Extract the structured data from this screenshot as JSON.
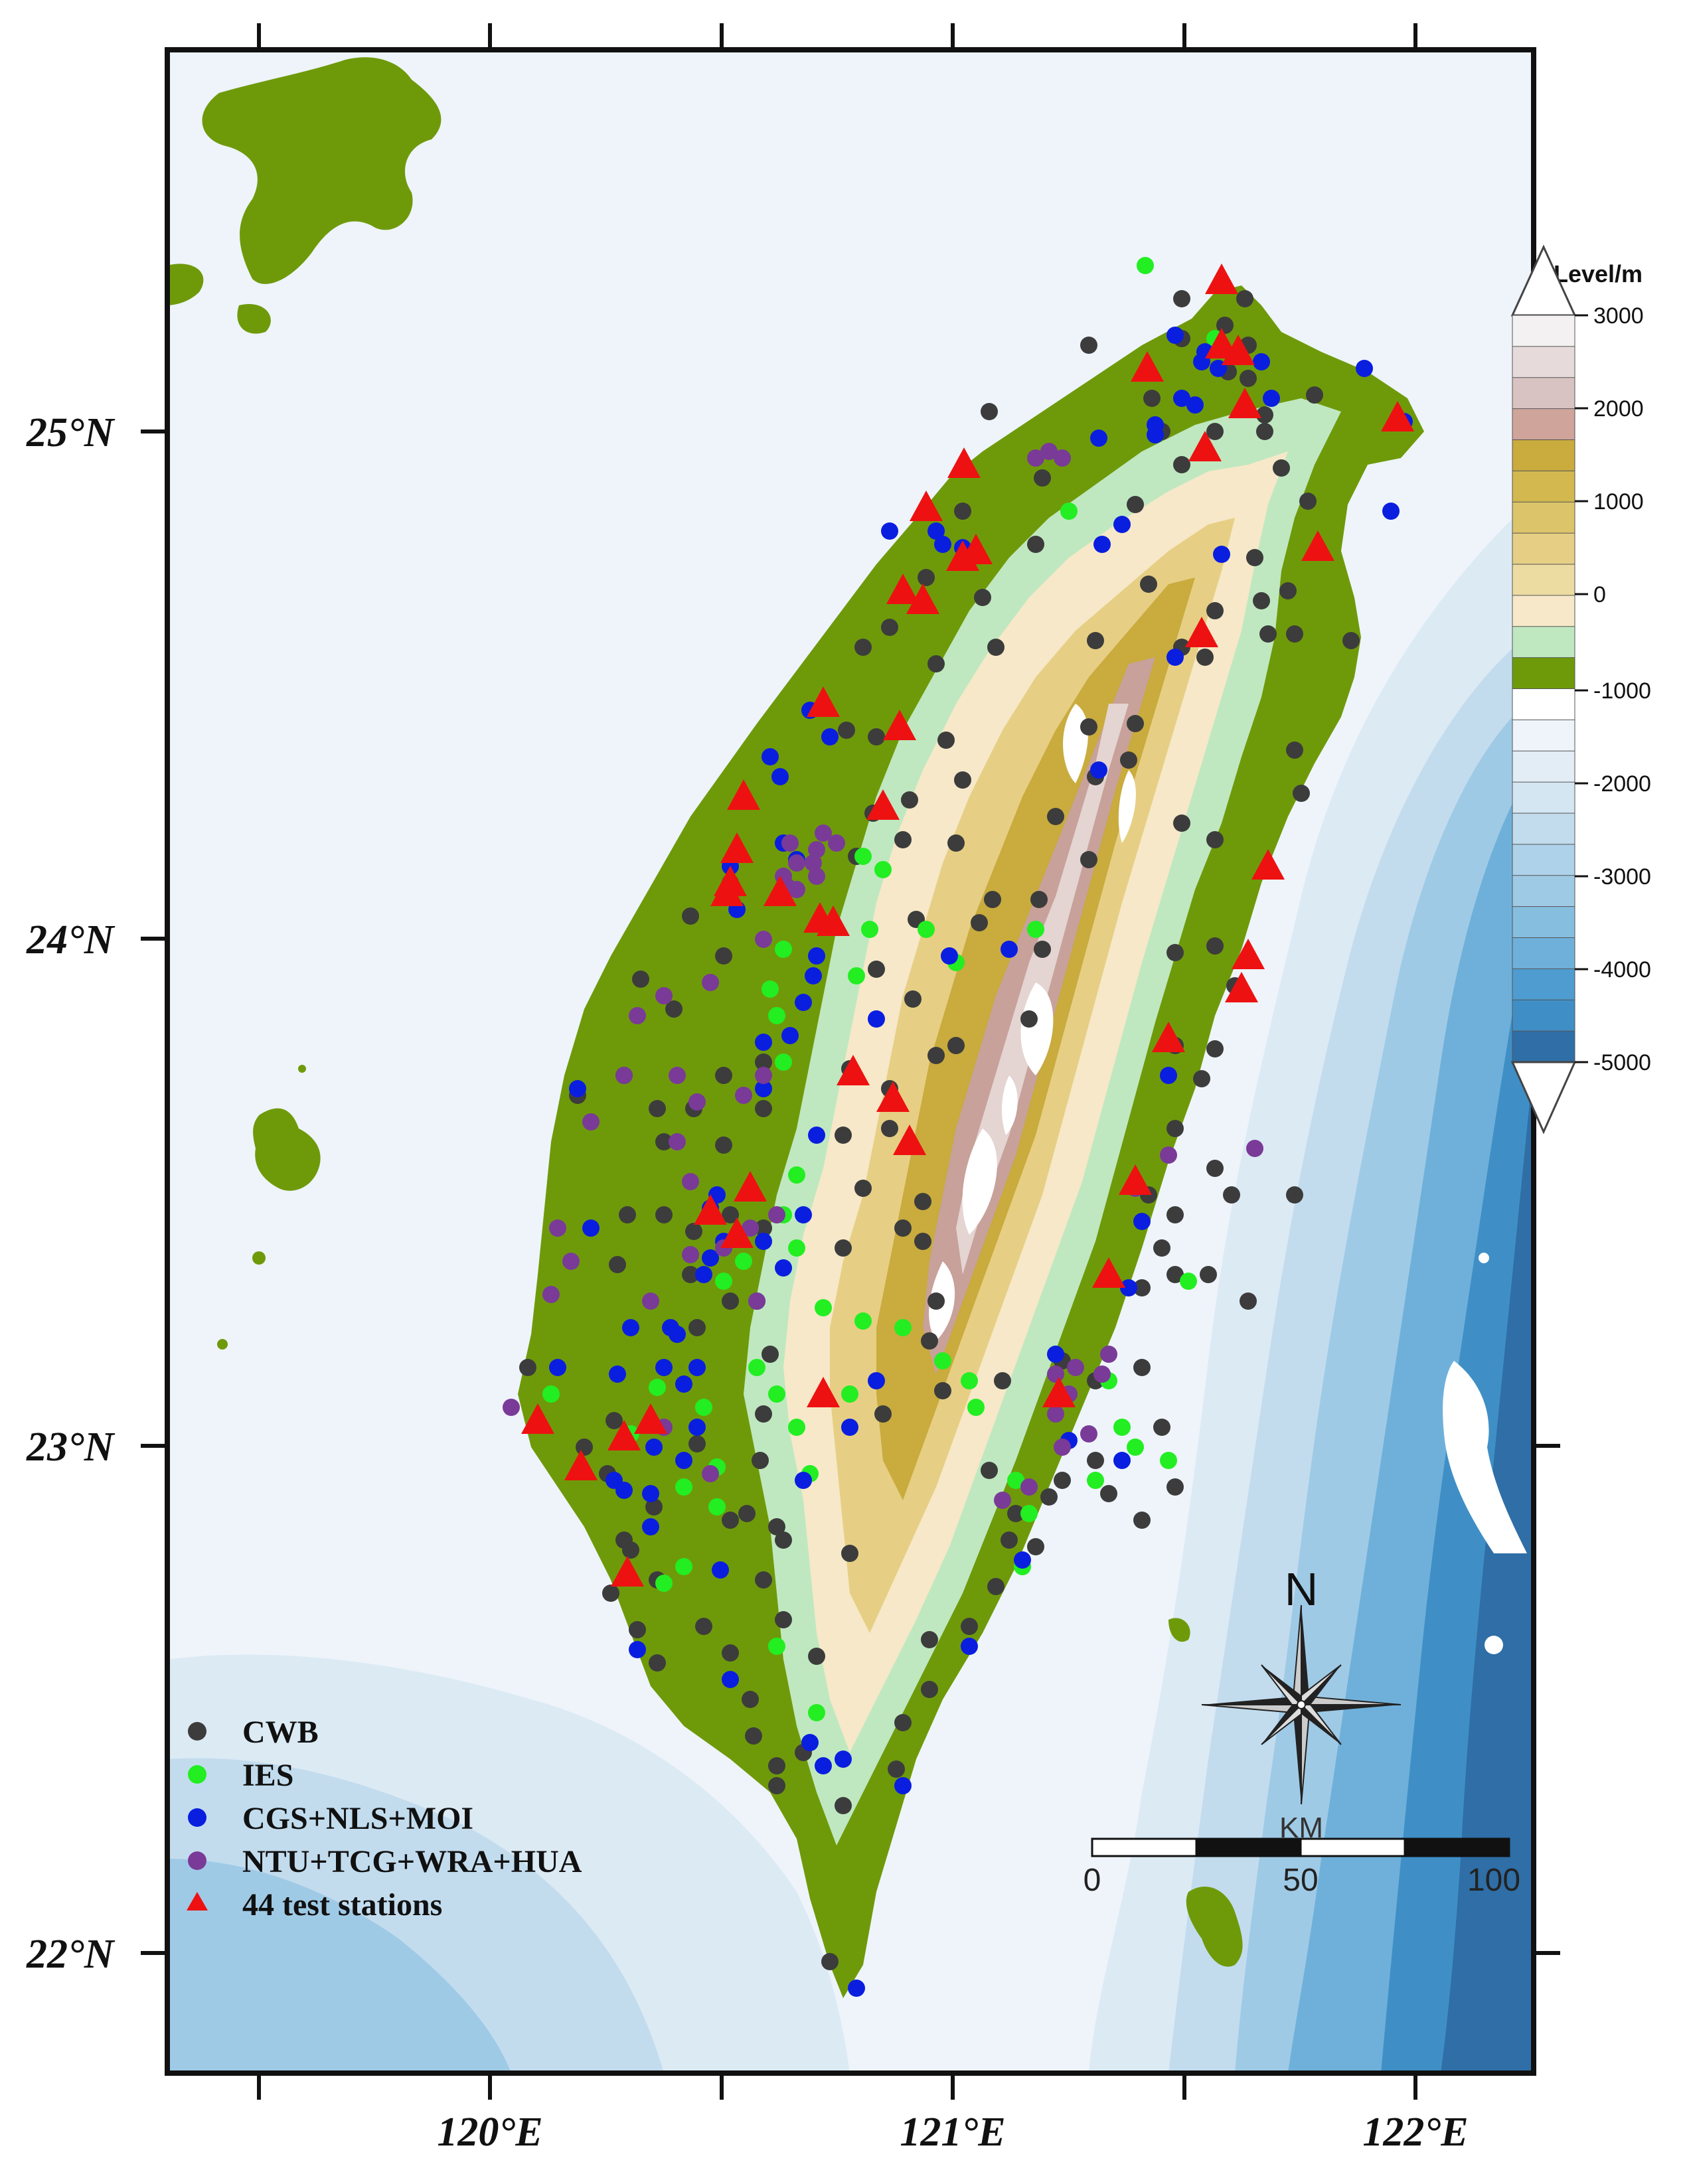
{
  "colors": {
    "ocean_shallow": "#eef4fa",
    "ocean_1": "#dceaf4",
    "ocean_2": "#c2dcee",
    "ocean_3": "#9fcae6",
    "ocean_4": "#6fb0da",
    "ocean_5": "#3f8fc6",
    "ocean_deep": "#2f6ea6",
    "lowland": "#6e9a0a",
    "hill": "#bfe8c0",
    "mid1": "#f6e8c8",
    "mid2": "#e6cf84",
    "mid3": "#c9ab3e",
    "high1": "#c7a19a",
    "high2": "#e4d4d2",
    "peak": "#ffffff",
    "cwb": "#3c3c3c",
    "ies": "#22ee22",
    "cgs": "#0a1ee0",
    "ntu": "#7a3a98",
    "test": "#ee1111"
  },
  "axes": {
    "lat_labels": [
      "25°N",
      "24°N",
      "23°N",
      "22°N"
    ],
    "lon_labels": [
      "120°E",
      "121°E",
      "122°E"
    ]
  },
  "colorbar": {
    "title": "Level/m",
    "ticks": [
      "3000",
      "2000",
      "1000",
      "0",
      "-1000",
      "-2000",
      "-3000",
      "-4000",
      "-5000"
    ]
  },
  "legend": [
    {
      "label": "CWB",
      "marker": "circle",
      "color_key": "cwb"
    },
    {
      "label": "IES",
      "marker": "circle",
      "color_key": "ies"
    },
    {
      "label": "CGS+NLS+MOI",
      "marker": "circle",
      "color_key": "cgs"
    },
    {
      "label": "NTU+TCG+WRA+HUA",
      "marker": "circle",
      "color_key": "ntu"
    },
    {
      "label": "44 test stations",
      "marker": "triangle",
      "color_key": "test"
    }
  ],
  "north_arrow": {
    "label": "N",
    "icon": "compass-rose-icon"
  },
  "scale_bar": {
    "unit": "KM",
    "ticks": [
      "0",
      "50",
      "100"
    ]
  }
}
